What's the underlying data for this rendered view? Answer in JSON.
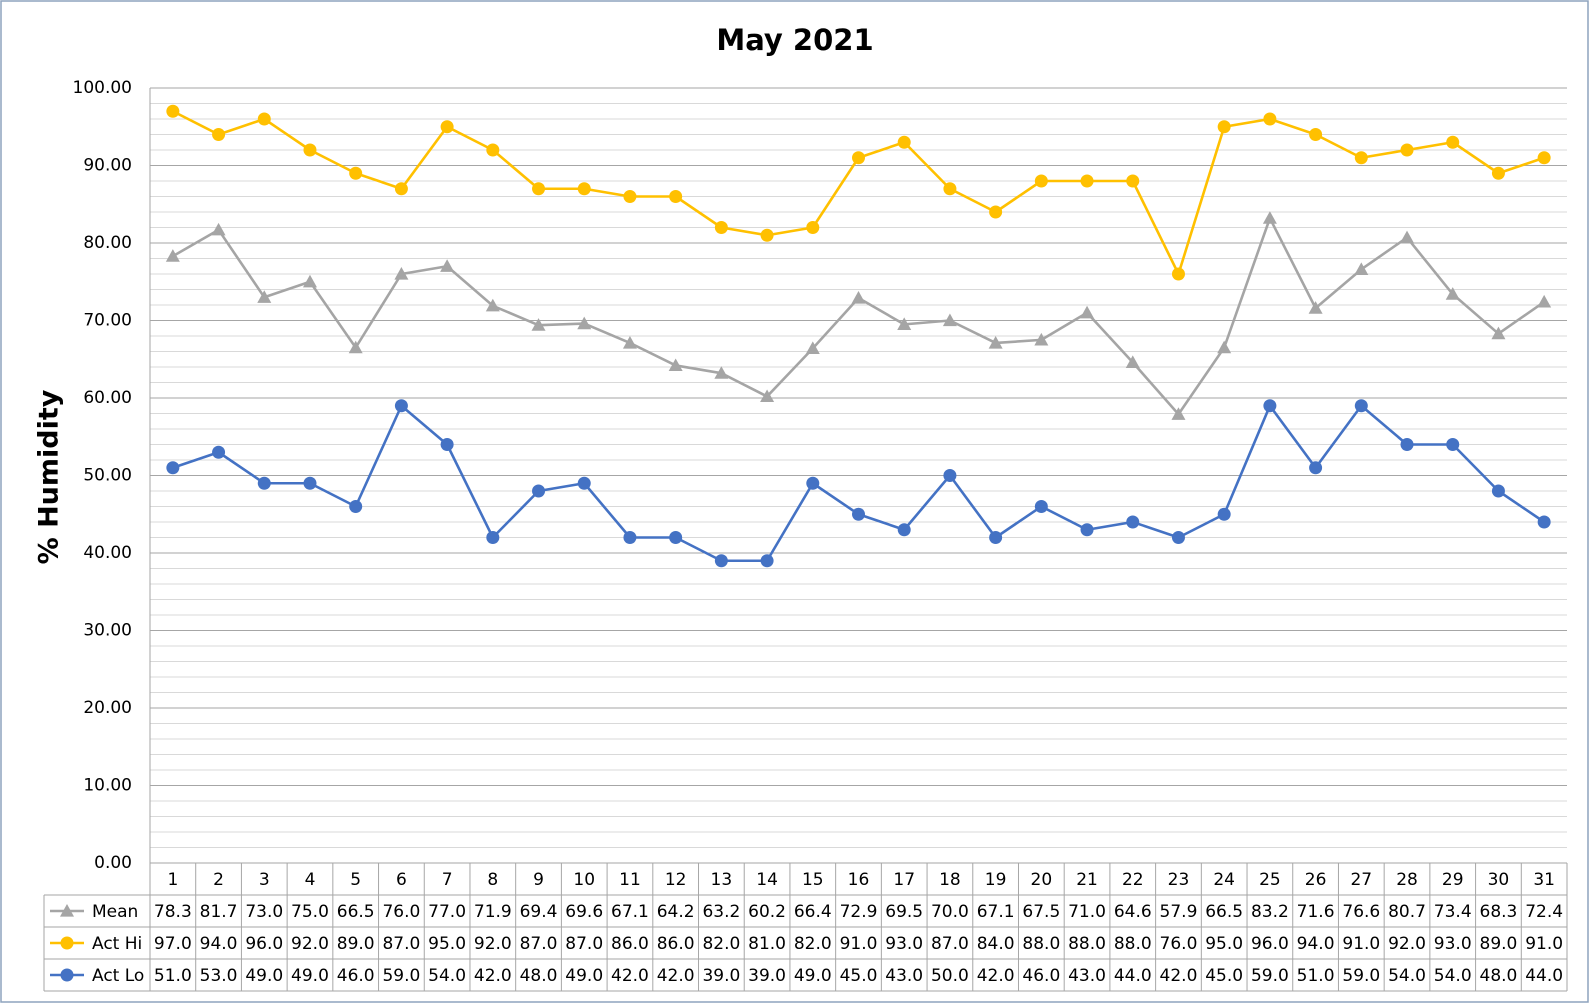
{
  "chart_data": {
    "type": "line",
    "title": "May 2021",
    "y_label": "% Humidity",
    "categories": [
      1,
      2,
      3,
      4,
      5,
      6,
      7,
      8,
      9,
      10,
      11,
      12,
      13,
      14,
      15,
      16,
      17,
      18,
      19,
      20,
      21,
      22,
      23,
      24,
      25,
      26,
      27,
      28,
      29,
      30,
      31
    ],
    "ylim": [
      0,
      100
    ],
    "yticks": [
      {
        "value": 0,
        "label": "0.00"
      },
      {
        "value": 10,
        "label": "10.00"
      },
      {
        "value": 20,
        "label": "20.00"
      },
      {
        "value": 30,
        "label": "30.00"
      },
      {
        "value": 40,
        "label": "40.00"
      },
      {
        "value": 50,
        "label": "50.00"
      },
      {
        "value": 60,
        "label": "60.00"
      },
      {
        "value": 70,
        "label": "70.00"
      },
      {
        "value": 80,
        "label": "80.00"
      },
      {
        "value": 90,
        "label": "90.00"
      },
      {
        "value": 100,
        "label": "100.00"
      }
    ],
    "minor_yticks": [
      2,
      4,
      6,
      8,
      12,
      14,
      16,
      18,
      22,
      24,
      26,
      28,
      32,
      34,
      36,
      38,
      42,
      44,
      46,
      48,
      52,
      54,
      56,
      58,
      62,
      64,
      66,
      68,
      72,
      74,
      76,
      78,
      82,
      84,
      86,
      88,
      92,
      94,
      96,
      98
    ],
    "grid": true,
    "data_table": true,
    "series": [
      {
        "name": "Mean",
        "color": "#a5a5a5",
        "marker": "triangle",
        "values": [
          78.3,
          81.7,
          73.0,
          75.0,
          66.5,
          76.0,
          77.0,
          71.9,
          69.4,
          69.6,
          67.1,
          64.2,
          63.2,
          60.2,
          66.4,
          72.9,
          69.5,
          70.0,
          67.1,
          67.5,
          71.0,
          64.6,
          57.9,
          66.5,
          83.2,
          71.6,
          76.6,
          80.7,
          73.4,
          68.3,
          72.4
        ],
        "value_labels": [
          "78.3",
          "81.7",
          "73.0",
          "75.0",
          "66.5",
          "76.0",
          "77.0",
          "71.9",
          "69.4",
          "69.6",
          "67.1",
          "64.2",
          "63.2",
          "60.2",
          "66.4",
          "72.9",
          "69.5",
          "70.0",
          "67.1",
          "67.5",
          "71.0",
          "64.6",
          "57.9",
          "66.5",
          "83.2",
          "71.6",
          "76.6",
          "80.7",
          "73.4",
          "68.3",
          "72.4"
        ]
      },
      {
        "name": "Act Hi",
        "color": "#ffc000",
        "marker": "circle",
        "values": [
          97,
          94,
          96,
          92,
          89,
          87,
          95,
          92,
          87,
          87,
          86,
          86,
          82,
          81,
          82,
          91,
          93,
          87,
          84,
          88,
          88,
          88,
          76,
          95,
          96,
          94,
          91,
          92,
          93,
          89,
          91
        ],
        "value_labels": [
          "97.0",
          "94.0",
          "96.0",
          "92.0",
          "89.0",
          "87.0",
          "95.0",
          "92.0",
          "87.0",
          "87.0",
          "86.0",
          "86.0",
          "82.0",
          "81.0",
          "82.0",
          "91.0",
          "93.0",
          "87.0",
          "84.0",
          "88.0",
          "88.0",
          "88.0",
          "76.0",
          "95.0",
          "96.0",
          "94.0",
          "91.0",
          "92.0",
          "93.0",
          "89.0",
          "91.0"
        ]
      },
      {
        "name": "Act Lo",
        "color": "#4472c4",
        "marker": "circle",
        "values": [
          51,
          53,
          49,
          49,
          46,
          59,
          54,
          42,
          48,
          49,
          42,
          42,
          39,
          39,
          49,
          45,
          43,
          50,
          42,
          46,
          43,
          44,
          42,
          45,
          59,
          51,
          59,
          54,
          54,
          48,
          44
        ],
        "value_labels": [
          "51.0",
          "53.0",
          "49.0",
          "49.0",
          "46.0",
          "59.0",
          "54.0",
          "42.0",
          "48.0",
          "49.0",
          "42.0",
          "42.0",
          "39.0",
          "39.0",
          "49.0",
          "45.0",
          "43.0",
          "50.0",
          "42.0",
          "46.0",
          "43.0",
          "44.0",
          "42.0",
          "45.0",
          "59.0",
          "51.0",
          "59.0",
          "54.0",
          "54.0",
          "48.0",
          "44.0"
        ]
      }
    ]
  }
}
